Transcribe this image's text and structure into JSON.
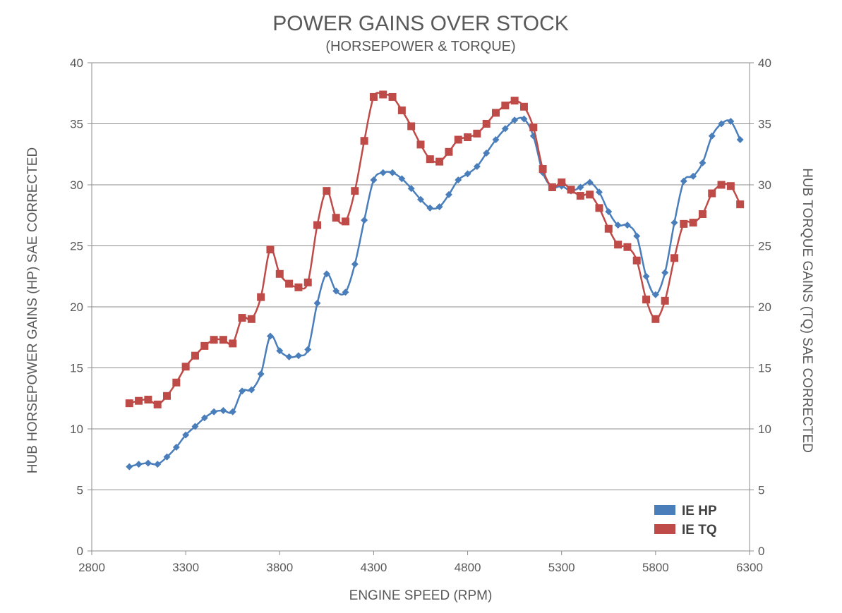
{
  "chart_data": {
    "type": "line",
    "title": "POWER GAINS OVER STOCK",
    "subtitle": "(HORSEPOWER & TORQUE)",
    "xlabel": "ENGINE SPEED (RPM)",
    "ylabel": "HUB HORSEPOWER GAINS (HP) SAE CORRECTED",
    "y2label": "HUB TORQUE GAINS (TQ) SAE CORRECTED",
    "xlim": [
      2800,
      6300
    ],
    "ylim": [
      0,
      40
    ],
    "xticks": [
      2800,
      3300,
      3800,
      4300,
      4800,
      5300,
      5800,
      6300
    ],
    "yticks": [
      0,
      5,
      10,
      15,
      20,
      25,
      30,
      35,
      40
    ],
    "grid": true,
    "legend_position": "bottom-right",
    "x": [
      3000,
      3050,
      3100,
      3150,
      3200,
      3250,
      3300,
      3350,
      3400,
      3450,
      3500,
      3550,
      3600,
      3650,
      3700,
      3750,
      3800,
      3850,
      3900,
      3950,
      4000,
      4050,
      4100,
      4150,
      4200,
      4250,
      4300,
      4350,
      4400,
      4450,
      4500,
      4550,
      4600,
      4650,
      4700,
      4750,
      4800,
      4850,
      4900,
      4950,
      5000,
      5050,
      5100,
      5150,
      5200,
      5250,
      5300,
      5350,
      5400,
      5450,
      5500,
      5550,
      5600,
      5650,
      5700,
      5750,
      5800,
      5850,
      5900,
      5950,
      6000,
      6050,
      6100,
      6150,
      6200,
      6250
    ],
    "series": [
      {
        "name": "IE HP",
        "color": "#4a7ebb",
        "marker": "diamond",
        "values": [
          6.9,
          7.1,
          7.2,
          7.1,
          7.7,
          8.5,
          9.5,
          10.2,
          10.9,
          11.4,
          11.5,
          11.4,
          13.1,
          13.2,
          14.5,
          17.6,
          16.4,
          15.9,
          16.0,
          16.5,
          20.3,
          22.7,
          21.3,
          21.2,
          23.5,
          27.1,
          30.4,
          31.0,
          31.0,
          30.5,
          29.7,
          28.8,
          28.1,
          28.2,
          29.2,
          30.4,
          30.9,
          31.5,
          32.6,
          33.7,
          34.6,
          35.3,
          35.4,
          34.0,
          31.0,
          29.8,
          29.9,
          29.5,
          29.8,
          30.2,
          29.4,
          27.8,
          26.7,
          26.7,
          25.8,
          22.5,
          21.0,
          22.8,
          26.9,
          30.3,
          30.7,
          31.8,
          34.0,
          35.0,
          35.2,
          33.7
        ]
      },
      {
        "name": "IE TQ",
        "color": "#be4b48",
        "marker": "square",
        "values": [
          12.1,
          12.3,
          12.4,
          12.0,
          12.7,
          13.8,
          15.1,
          16.0,
          16.8,
          17.3,
          17.3,
          17.0,
          19.1,
          19.0,
          20.8,
          24.7,
          22.7,
          21.9,
          21.6,
          22.0,
          26.7,
          29.5,
          27.3,
          27.0,
          29.5,
          33.6,
          37.2,
          37.4,
          37.2,
          36.1,
          34.8,
          33.3,
          32.1,
          31.9,
          32.7,
          33.7,
          33.9,
          34.2,
          35.0,
          35.9,
          36.5,
          36.9,
          36.4,
          34.7,
          31.3,
          29.8,
          30.2,
          29.6,
          29.1,
          29.2,
          28.1,
          26.4,
          25.1,
          24.9,
          23.8,
          20.6,
          19.0,
          20.5,
          24.0,
          26.8,
          26.9,
          27.6,
          29.3,
          30.0,
          29.9,
          28.4
        ]
      }
    ]
  }
}
